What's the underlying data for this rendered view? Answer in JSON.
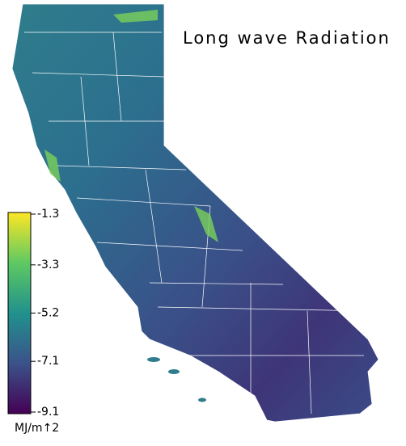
{
  "title": "Long wave Radiation",
  "colorbar": {
    "lim": [
      -9.1,
      -1.3
    ],
    "ticks": [
      -1.3,
      -3.3,
      -5.2,
      -7.1,
      -9.1
    ],
    "unit": "MJ/m↑2"
  }
}
